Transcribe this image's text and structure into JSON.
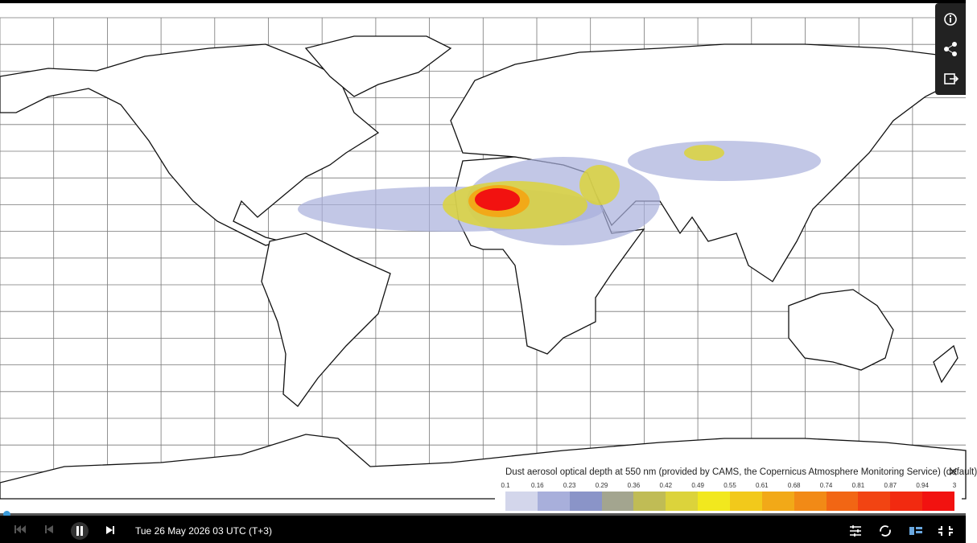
{
  "legend": {
    "title": "Dust aerosol optical depth at 550 nm (provided by CAMS, the Copernicus Atmosphere Monitoring Service) (default)",
    "labels": [
      "0.1",
      "0.16",
      "0.23",
      "0.29",
      "0.36",
      "0.42",
      "0.49",
      "0.55",
      "0.61",
      "0.68",
      "0.74",
      "0.81",
      "0.87",
      "0.94",
      "3"
    ],
    "colors": [
      "#d3d6eb",
      "#a8afdb",
      "#8a94c8",
      "#a3a58f",
      "#c0bc55",
      "#dcd33b",
      "#f2e81e",
      "#f2c91b",
      "#f2a918",
      "#f28a16",
      "#f26614",
      "#f24412",
      "#f22a10",
      "#f21210"
    ]
  },
  "player": {
    "time": "Tue 26 May 2026 03 UTC (T+3)"
  }
}
